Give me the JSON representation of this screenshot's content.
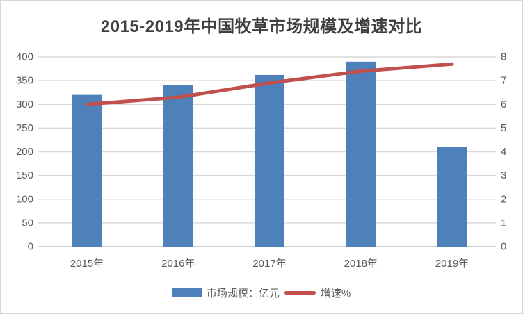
{
  "title": "2015-2019年中国牧草市场规模及增速对比",
  "chart_data": {
    "type": "bar",
    "title": "2015-2019年中国牧草市场规模及增速对比",
    "categories": [
      "2015年",
      "2016年",
      "2017年",
      "2018年",
      "2019年"
    ],
    "series": [
      {
        "name": "市场规模：亿元",
        "type": "bar",
        "axis": "left",
        "color": "#4e80b9",
        "values": [
          320,
          340,
          362,
          390,
          210
        ]
      },
      {
        "name": "增速%",
        "type": "line",
        "axis": "right",
        "color": "#c0504d",
        "values": [
          6.0,
          6.3,
          6.9,
          7.4,
          7.7
        ]
      }
    ],
    "left_axis": {
      "min": 0,
      "max": 400,
      "step": 50,
      "ticks": [
        "0",
        "50",
        "100",
        "150",
        "200",
        "250",
        "300",
        "350",
        "400"
      ]
    },
    "right_axis": {
      "min": 0,
      "max": 8,
      "step": 1,
      "ticks": [
        "0",
        "1",
        "2",
        "3",
        "4",
        "5",
        "6",
        "7",
        "8"
      ]
    },
    "grid": true,
    "legend_position": "bottom",
    "colors": {
      "gridline": "#d9d9d9",
      "baseline": "#c3c3c3",
      "axis_label": "#595959",
      "title": "#3f3f3f"
    }
  },
  "legend": {
    "bar_label": "市场规模：亿元",
    "line_label": "增速%"
  }
}
